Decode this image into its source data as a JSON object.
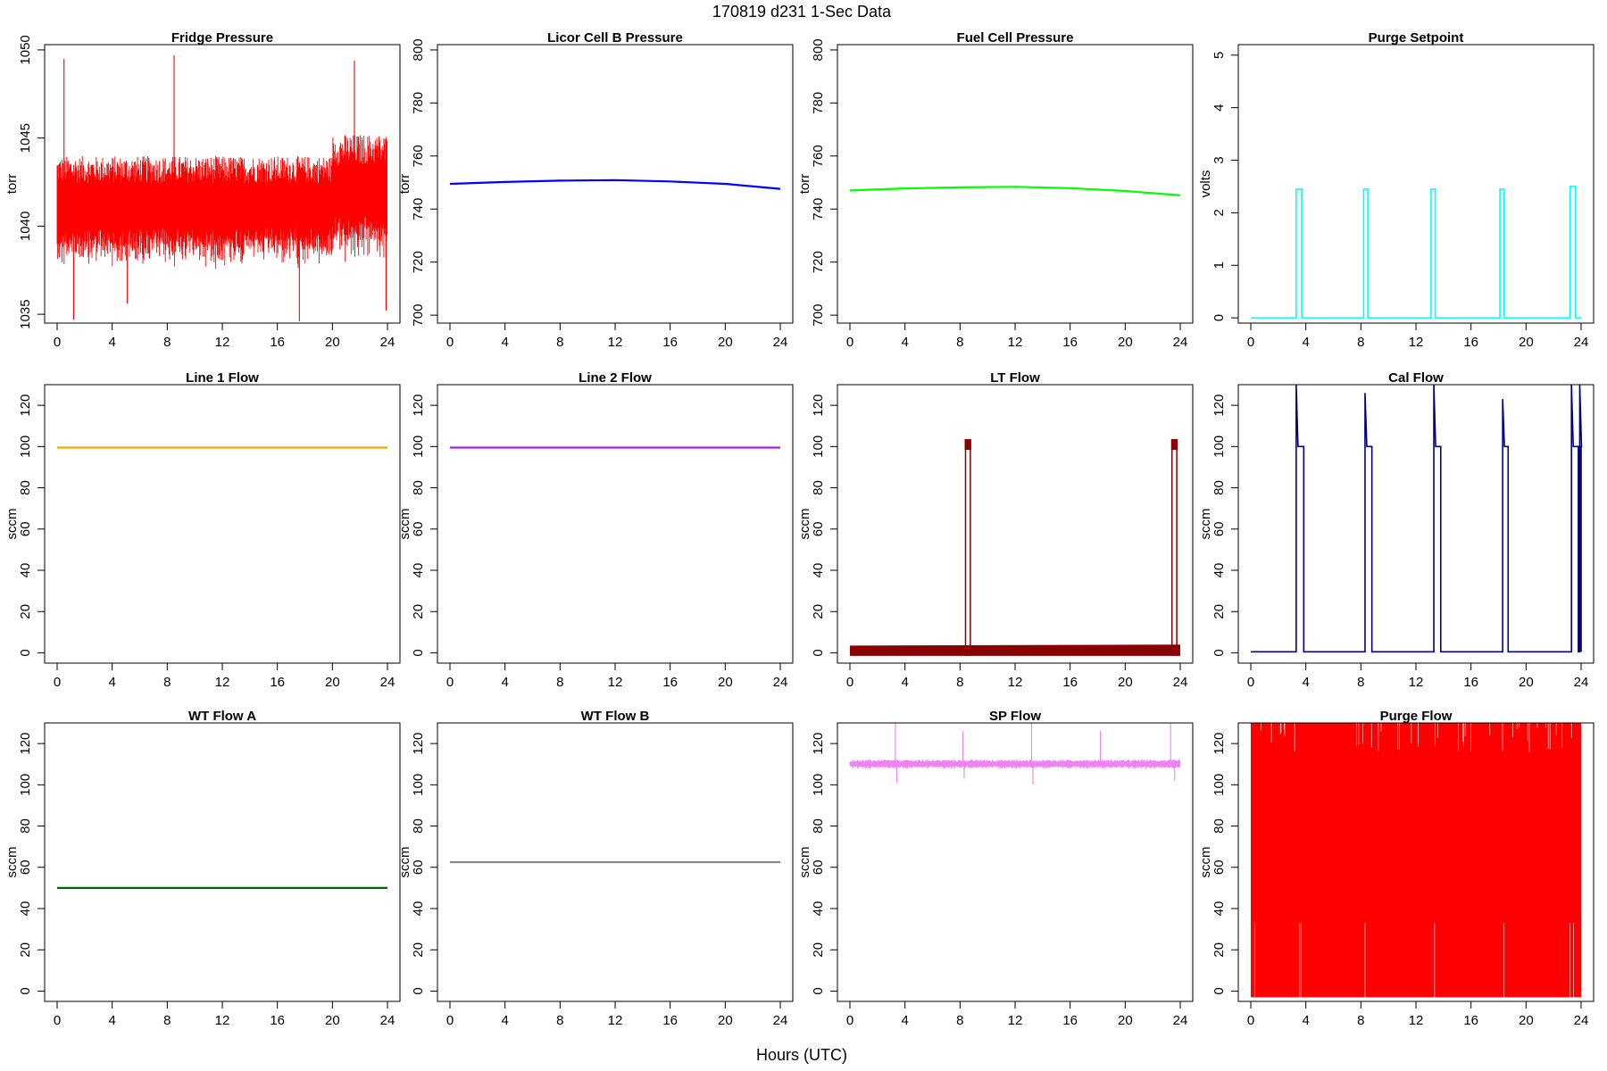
{
  "figure": {
    "title": "170819   d231   1-Sec Data",
    "xlabel": "Hours (UTC)"
  },
  "chart_data": [
    {
      "type": "line",
      "title": "Fridge Pressure",
      "ylabel": "torr",
      "color": "#ff0000",
      "xlim": [
        0,
        24
      ],
      "ylim": [
        1034.5,
        1050.3
      ],
      "x_ticks": [
        0,
        4,
        8,
        12,
        16,
        20,
        24
      ],
      "y_ticks": [
        1035,
        1040,
        1045,
        1050
      ],
      "grid": false,
      "series": [
        {
          "kind": "noise-band",
          "segments": [
            {
              "x": [
                0,
                20
              ],
              "center": 1040.9,
              "halfwidth": 2.8
            },
            {
              "x": [
                20,
                24
              ],
              "center": 1041.7,
              "halfwidth": 3.2
            }
          ],
          "spikes": [
            {
              "x": 0.5,
              "y": 1049.5
            },
            {
              "x": 8.5,
              "y": 1049.7
            },
            {
              "x": 21.6,
              "y": 1049.4
            },
            {
              "x": 1.2,
              "y": 1034.7
            },
            {
              "x": 5.1,
              "y": 1035.6
            },
            {
              "x": 17.6,
              "y": 1034.6
            },
            {
              "x": 23.9,
              "y": 1035.2
            }
          ]
        }
      ]
    },
    {
      "type": "line",
      "title": "Licor Cell B Pressure",
      "ylabel": "torr",
      "color": "#0000ff",
      "xlim": [
        0,
        24
      ],
      "ylim": [
        697,
        802
      ],
      "x_ticks": [
        0,
        4,
        8,
        12,
        16,
        20,
        24
      ],
      "y_ticks": [
        700,
        720,
        740,
        760,
        780,
        800
      ],
      "grid": false,
      "series": [
        {
          "kind": "line",
          "x": [
            0,
            4,
            8,
            12,
            16,
            20,
            24
          ],
          "y": [
            749.5,
            750.2,
            750.7,
            750.9,
            750.4,
            749.5,
            747.6
          ]
        }
      ]
    },
    {
      "type": "line",
      "title": "Fuel Cell Pressure",
      "ylabel": "torr",
      "color": "#00ff00",
      "xlim": [
        0,
        24
      ],
      "ylim": [
        697,
        802
      ],
      "x_ticks": [
        0,
        4,
        8,
        12,
        16,
        20,
        24
      ],
      "y_ticks": [
        700,
        720,
        740,
        760,
        780,
        800
      ],
      "grid": false,
      "series": [
        {
          "kind": "line",
          "x": [
            0,
            4,
            8,
            12,
            16,
            20,
            24
          ],
          "y": [
            747.0,
            747.8,
            748.2,
            748.4,
            747.9,
            746.8,
            745.2
          ]
        }
      ]
    },
    {
      "type": "line",
      "title": "Purge Setpoint",
      "ylabel": "volts",
      "color": "#00ffff",
      "xlim": [
        0,
        24
      ],
      "ylim": [
        -0.1,
        5.2
      ],
      "x_ticks": [
        0,
        4,
        8,
        12,
        16,
        20,
        24
      ],
      "y_ticks": [
        0,
        1,
        2,
        3,
        4,
        5
      ],
      "grid": false,
      "series": [
        {
          "kind": "pulses",
          "base": 0,
          "pulses": [
            {
              "x": [
                3.3,
                3.7
              ],
              "y": 2.45
            },
            {
              "x": 8.2,
              "w": 0.3,
              "y": 2.45
            },
            {
              "x": 13.1,
              "w": 0.3,
              "y": 2.45
            },
            {
              "x": 18.1,
              "w": 0.3,
              "y": 2.45
            },
            {
              "x": 23.2,
              "w": 0.4,
              "y": 2.5
            }
          ]
        }
      ]
    },
    {
      "type": "line",
      "title": "Line 1 Flow",
      "ylabel": "sccm",
      "color": "#ffa500",
      "xlim": [
        0,
        24
      ],
      "ylim": [
        -5,
        130
      ],
      "x_ticks": [
        0,
        4,
        8,
        12,
        16,
        20,
        24
      ],
      "y_ticks": [
        0,
        20,
        40,
        60,
        80,
        100,
        120
      ],
      "grid": false,
      "series": [
        {
          "kind": "line",
          "x": [
            0,
            24
          ],
          "y": [
            99.5,
            99.5
          ]
        }
      ]
    },
    {
      "type": "line",
      "title": "Line 2 Flow",
      "ylabel": "sccm",
      "color": "#a020f0",
      "xlim": [
        0,
        24
      ],
      "ylim": [
        -5,
        130
      ],
      "x_ticks": [
        0,
        4,
        8,
        12,
        16,
        20,
        24
      ],
      "y_ticks": [
        0,
        20,
        40,
        60,
        80,
        100,
        120
      ],
      "grid": false,
      "series": [
        {
          "kind": "line",
          "x": [
            0,
            24
          ],
          "y": [
            99.5,
            99.5
          ]
        }
      ]
    },
    {
      "type": "line",
      "title": "LT Flow",
      "ylabel": "sccm",
      "color": "#8b0000",
      "xlim": [
        0,
        24
      ],
      "ylim": [
        -5,
        130
      ],
      "x_ticks": [
        0,
        4,
        8,
        12,
        16,
        20,
        24
      ],
      "y_ticks": [
        0,
        20,
        40,
        60,
        80,
        100,
        120
      ],
      "grid": false,
      "series": [
        {
          "kind": "band-with-pulses",
          "band": {
            "x": [
              0,
              24
            ],
            "low": -1.5,
            "high_start": 3.5,
            "high_end": 4
          },
          "pulses": [
            {
              "x": 8.4,
              "w": 0.35,
              "y": 101
            },
            {
              "x": 23.4,
              "w": 0.35,
              "y": 101
            }
          ]
        }
      ]
    },
    {
      "type": "line",
      "title": "Cal Flow",
      "ylabel": "sccm",
      "color": "#00008b",
      "xlim": [
        0,
        24
      ],
      "ylim": [
        -5,
        130
      ],
      "x_ticks": [
        0,
        4,
        8,
        12,
        16,
        20,
        24
      ],
      "y_ticks": [
        0,
        20,
        40,
        60,
        80,
        100,
        120
      ],
      "grid": false,
      "series": [
        {
          "kind": "pulses",
          "base": 0.5,
          "pulses": [
            {
              "x": 3.3,
              "w": 0.55,
              "y": 100,
              "spike": 130
            },
            {
              "x": 8.3,
              "w": 0.5,
              "y": 100,
              "spike": 126
            },
            {
              "x": 13.3,
              "w": 0.5,
              "y": 100,
              "spike": 130
            },
            {
              "x": 18.3,
              "w": 0.4,
              "y": 100,
              "spike": 123
            },
            {
              "x": 23.3,
              "w": 0.5,
              "y": 100,
              "spike": 130
            },
            {
              "x": 23.9,
              "w": 0.1,
              "y": 100,
              "spike": 130
            }
          ]
        }
      ]
    },
    {
      "type": "line",
      "title": "WT Flow A",
      "ylabel": "sccm",
      "color": "#006400",
      "xlim": [
        0,
        24
      ],
      "ylim": [
        -5,
        130
      ],
      "x_ticks": [
        0,
        4,
        8,
        12,
        16,
        20,
        24
      ],
      "y_ticks": [
        0,
        20,
        40,
        60,
        80,
        100,
        120
      ],
      "grid": false,
      "series": [
        {
          "kind": "line",
          "x": [
            0,
            24
          ],
          "y": [
            50,
            50
          ]
        }
      ]
    },
    {
      "type": "line",
      "title": "WT Flow B",
      "ylabel": "sccm",
      "color": "#888888",
      "xlim": [
        0,
        24
      ],
      "ylim": [
        -5,
        130
      ],
      "x_ticks": [
        0,
        4,
        8,
        12,
        16,
        20,
        24
      ],
      "y_ticks": [
        0,
        20,
        40,
        60,
        80,
        100,
        120
      ],
      "grid": false,
      "series": [
        {
          "kind": "line",
          "x": [
            0,
            24
          ],
          "y": [
            62.5,
            62.5
          ]
        }
      ]
    },
    {
      "type": "line",
      "title": "SP Flow",
      "ylabel": "sccm",
      "color": "#ee82ee",
      "xlim": [
        0,
        24
      ],
      "ylim": [
        -5,
        130
      ],
      "x_ticks": [
        0,
        4,
        8,
        12,
        16,
        20,
        24
      ],
      "y_ticks": [
        0,
        20,
        40,
        60,
        80,
        100,
        120
      ],
      "grid": false,
      "series": [
        {
          "kind": "noise-band",
          "segments": [
            {
              "x": [
                0,
                24
              ],
              "center": 110,
              "halfwidth": 2
            }
          ],
          "spikes": [
            {
              "x": 3.3,
              "y": 130
            },
            {
              "x": 8.2,
              "y": 126
            },
            {
              "x": 13.2,
              "y": 130
            },
            {
              "x": 18.2,
              "y": 126
            },
            {
              "x": 23.3,
              "y": 130
            },
            {
              "x": 3.4,
              "y": 101
            },
            {
              "x": 8.3,
              "y": 103
            },
            {
              "x": 13.3,
              "y": 100
            },
            {
              "x": 23.6,
              "y": 102
            }
          ]
        }
      ]
    },
    {
      "type": "line",
      "title": "Purge Flow",
      "ylabel": "sccm",
      "color": "#ff0000",
      "xlim": [
        0,
        24
      ],
      "ylim": [
        -5,
        130
      ],
      "x_ticks": [
        0,
        4,
        8,
        12,
        16,
        20,
        24
      ],
      "y_ticks": [
        0,
        20,
        40,
        60,
        80,
        100,
        120
      ],
      "grid": false,
      "series": [
        {
          "kind": "fill",
          "x": [
            0,
            24
          ],
          "low": -3,
          "high": 130
        }
      ]
    }
  ]
}
